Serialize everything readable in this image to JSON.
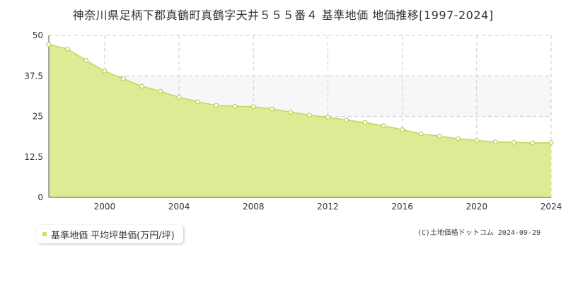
{
  "title": "神奈川県足柄下郡真鶴町真鶴字天井５５５番４ 基準地価 地価推移[1997-2024]",
  "legend_label": "基準地価 平均坪単価(万円/坪)",
  "copyright": "(C)土地価格ドットコム 2024-09-29",
  "colors": {
    "fill": "#dcec94",
    "line": "#bfd858",
    "point_fill": "#ffffff",
    "point_stroke": "#b5cf55",
    "grid": "#cccccc",
    "band": "#f7f7fa"
  },
  "chart_data": {
    "type": "area",
    "title": "",
    "xlabel": "",
    "ylabel": "",
    "x": [
      1997,
      1998,
      1999,
      2000,
      2001,
      2002,
      2003,
      2004,
      2005,
      2006,
      2007,
      2008,
      2009,
      2010,
      2011,
      2012,
      2013,
      2014,
      2015,
      2016,
      2017,
      2018,
      2019,
      2020,
      2021,
      2022,
      2023,
      2024
    ],
    "series": [
      {
        "values": [
          47.2,
          45.8,
          42.3,
          39.0,
          36.6,
          34.3,
          32.7,
          30.9,
          29.5,
          28.4,
          28.1,
          28.0,
          27.3,
          26.3,
          25.4,
          24.7,
          23.9,
          23.1,
          22.1,
          20.9,
          19.6,
          18.9,
          18.1,
          17.6,
          17.1,
          17.0,
          16.8,
          16.9
        ]
      }
    ],
    "xlim": [
      1997,
      2024
    ],
    "ylim": [
      0,
      50
    ],
    "xticks": [
      "2000",
      "2004",
      "2008",
      "2012",
      "2016",
      "2020",
      "2024"
    ],
    "yticks": [
      "0",
      "12.5",
      "25",
      "37.5",
      "50"
    ],
    "grid": true
  }
}
